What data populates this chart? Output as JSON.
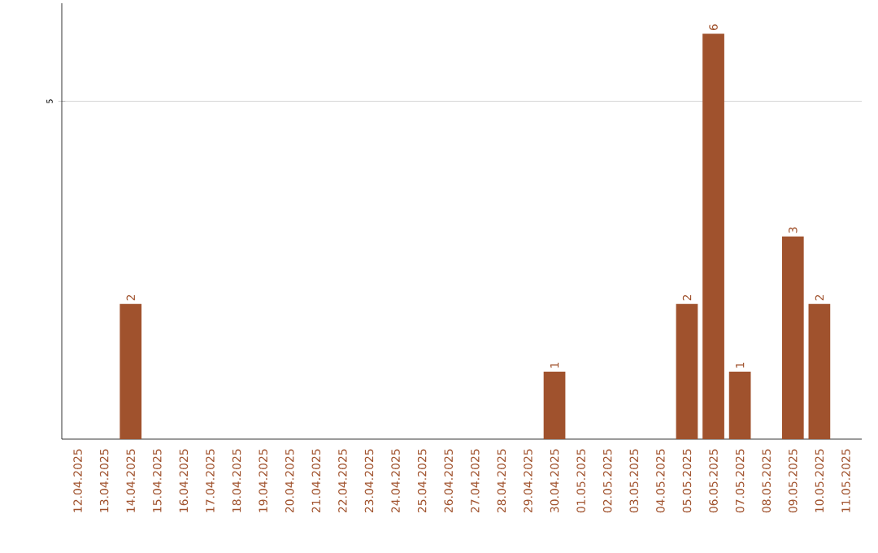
{
  "chart_data": {
    "type": "bar",
    "categories": [
      "12.04.2025",
      "13.04.2025",
      "14.04.2025",
      "15.04.2025",
      "16.04.2025",
      "17.04.2025",
      "18.04.2025",
      "19.04.2025",
      "20.04.2025",
      "21.04.2025",
      "22.04.2025",
      "23.04.2025",
      "24.04.2025",
      "25.04.2025",
      "26.04.2025",
      "27.04.2025",
      "28.04.2025",
      "29.04.2025",
      "30.04.2025",
      "01.05.2025",
      "02.05.2025",
      "03.05.2025",
      "04.05.2025",
      "05.05.2025",
      "06.05.2025",
      "07.05.2025",
      "08.05.2025",
      "09.05.2025",
      "10.05.2025",
      "11.05.2025"
    ],
    "values": [
      0,
      0,
      2,
      0,
      0,
      0,
      0,
      0,
      0,
      0,
      0,
      0,
      0,
      0,
      0,
      0,
      0,
      0,
      1,
      0,
      0,
      0,
      0,
      2,
      6,
      1,
      0,
      3,
      2,
      0
    ],
    "value_labels": [
      null,
      null,
      "2",
      null,
      null,
      null,
      null,
      null,
      null,
      null,
      null,
      null,
      null,
      null,
      null,
      null,
      null,
      null,
      "1",
      null,
      null,
      null,
      null,
      "2",
      "6",
      "1",
      null,
      "3",
      "2",
      null
    ],
    "color": "#a0522d",
    "ylim": [
      0,
      6.45
    ],
    "yticks": [
      5
    ],
    "grid": "y"
  }
}
